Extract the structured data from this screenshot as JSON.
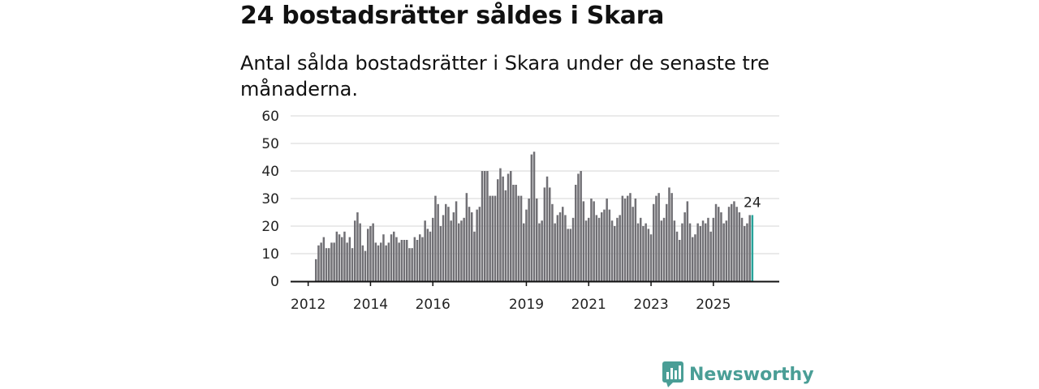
{
  "title": "24 bostadsrätter såldes i Skara",
  "subtitle": "Antal sålda bostadsrätter i Skara under de senaste tre månaderna.",
  "brand": {
    "name": "Newsworthy",
    "icon": "newsworthy-logo-icon"
  },
  "colors": {
    "bar": "#717075",
    "highlight": "#27a39a",
    "grid": "#d6d6d6",
    "axis": "#111111",
    "brand": "#4a9e96"
  },
  "chart_data": {
    "type": "bar",
    "title": "24 bostadsrätter såldes i Skara",
    "xlabel": "",
    "ylabel": "",
    "ylim": [
      0,
      60
    ],
    "yticks": [
      0,
      10,
      20,
      30,
      40,
      50,
      60
    ],
    "x_start_year": 2012,
    "x_start_month": 4,
    "xtick_labels": [
      "2012",
      "2014",
      "2016",
      "2019",
      "2021",
      "2023",
      "2025"
    ],
    "xtick_months": [
      "2012-01",
      "2014-01",
      "2016-01",
      "2019-01",
      "2021-01",
      "2023-01",
      "2025-01"
    ],
    "annotation": "24",
    "highlight_last": true,
    "values": [
      8,
      13,
      14,
      16,
      12,
      12,
      14,
      14,
      18,
      17,
      16,
      18,
      14,
      16,
      12,
      22,
      25,
      21,
      13,
      11,
      19,
      20,
      21,
      14,
      13,
      14,
      17,
      13,
      14,
      17,
      18,
      16,
      14,
      15,
      15,
      15,
      12,
      12,
      16,
      15,
      17,
      16,
      22,
      19,
      18,
      23,
      31,
      28,
      20,
      24,
      28,
      27,
      22,
      25,
      29,
      21,
      22,
      23,
      32,
      27,
      25,
      18,
      26,
      27,
      40,
      40,
      40,
      31,
      31,
      31,
      37,
      41,
      38,
      33,
      39,
      40,
      35,
      35,
      31,
      31,
      21,
      26,
      30,
      46,
      47,
      30,
      21,
      22,
      34,
      38,
      34,
      28,
      21,
      24,
      25,
      27,
      24,
      19,
      19,
      23,
      35,
      39,
      40,
      29,
      22,
      23,
      30,
      29,
      24,
      23,
      25,
      26,
      30,
      26,
      22,
      20,
      23,
      24,
      31,
      30,
      31,
      32,
      27,
      30,
      21,
      23,
      20,
      21,
      19,
      17,
      28,
      31,
      32,
      22,
      23,
      28,
      34,
      32,
      22,
      18,
      15,
      21,
      25,
      29,
      21,
      16,
      17,
      21,
      20,
      22,
      21,
      23,
      18,
      23,
      28,
      27,
      25,
      21,
      22,
      27,
      28,
      29,
      27,
      25,
      23,
      20,
      21,
      24,
      24
    ]
  }
}
